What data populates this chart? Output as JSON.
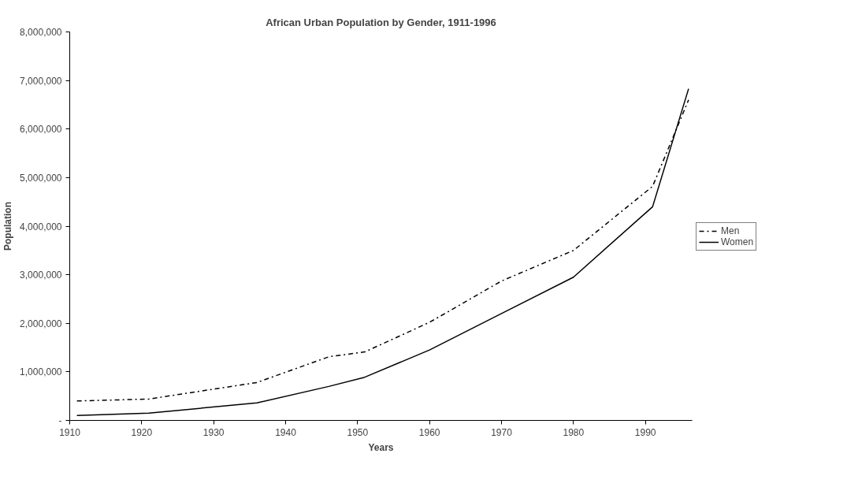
{
  "chart_data": {
    "type": "line",
    "title": "African Urban Population by Gender, 1911-1996",
    "xlabel": "Years",
    "ylabel": "Population",
    "x": [
      1911,
      1921,
      1936,
      1946,
      1951,
      1960,
      1970,
      1980,
      1991,
      1996
    ],
    "series": [
      {
        "name": "Men",
        "color": "#000000",
        "line_style": "dashdot",
        "values": [
          400000,
          440000,
          780000,
          1310000,
          1410000,
          2020000,
          2870000,
          3500000,
          4820000,
          6600000
        ]
      },
      {
        "name": "Women",
        "color": "#000000",
        "line_style": "solid",
        "values": [
          100000,
          150000,
          360000,
          700000,
          890000,
          1450000,
          2200000,
          2950000,
          4400000,
          6830000
        ]
      }
    ],
    "xlim": [
      1910,
      1996.5
    ],
    "xticks": [
      1910,
      1920,
      1930,
      1940,
      1950,
      1960,
      1970,
      1980,
      1990
    ],
    "ylim": [
      0,
      8000000
    ],
    "yticks": [
      {
        "value": 0,
        "label": "-"
      },
      {
        "value": 1000000,
        "label": "1,000,000"
      },
      {
        "value": 2000000,
        "label": "2,000,000"
      },
      {
        "value": 3000000,
        "label": "3,000,000"
      },
      {
        "value": 4000000,
        "label": "4,000,000"
      },
      {
        "value": 5000000,
        "label": "5,000,000"
      },
      {
        "value": 6000000,
        "label": "6,000,000"
      },
      {
        "value": 7000000,
        "label": "7,000,000"
      },
      {
        "value": 8000000,
        "label": "8,000,000"
      }
    ],
    "grid": false,
    "legend": "right",
    "marker": "none"
  }
}
